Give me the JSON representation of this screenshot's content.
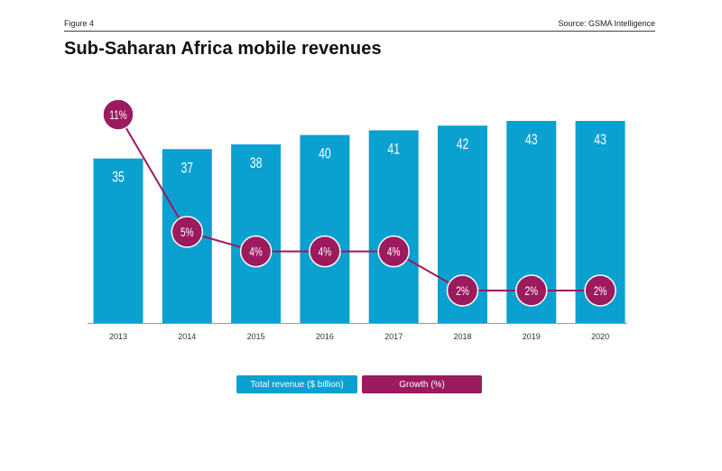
{
  "header": {
    "figure_label": "Figure 4",
    "source": "Source: GSMA Intelligence",
    "title": "Sub-Saharan Africa mobile revenues"
  },
  "legend": {
    "revenue_label": "Total revenue ($ billion)",
    "growth_label": "Growth (%)"
  },
  "chart_data": {
    "type": "bar",
    "title": "Sub-Saharan Africa mobile revenues",
    "categories": [
      "2013",
      "2014",
      "2015",
      "2016",
      "2017",
      "2018",
      "2019",
      "2020"
    ],
    "series": [
      {
        "name": "Total revenue ($ billion)",
        "type": "bar",
        "color": "#0aa0d0",
        "values": [
          35,
          37,
          38,
          40,
          41,
          42,
          43,
          43
        ],
        "labels": [
          "35",
          "37",
          "38",
          "40",
          "41",
          "42",
          "43",
          "43"
        ]
      },
      {
        "name": "Growth (%)",
        "type": "line",
        "color": "#9b1b5e",
        "values": [
          11,
          5,
          4,
          4,
          4,
          2,
          2,
          2
        ],
        "labels": [
          "11%",
          "5%",
          "4%",
          "4%",
          "4%",
          "2%",
          "2%",
          "2%"
        ]
      }
    ],
    "bar_axis_range": [
      0,
      43
    ],
    "growth_axis_range": [
      0,
      11
    ],
    "xlabel": "",
    "ylabel": ""
  }
}
